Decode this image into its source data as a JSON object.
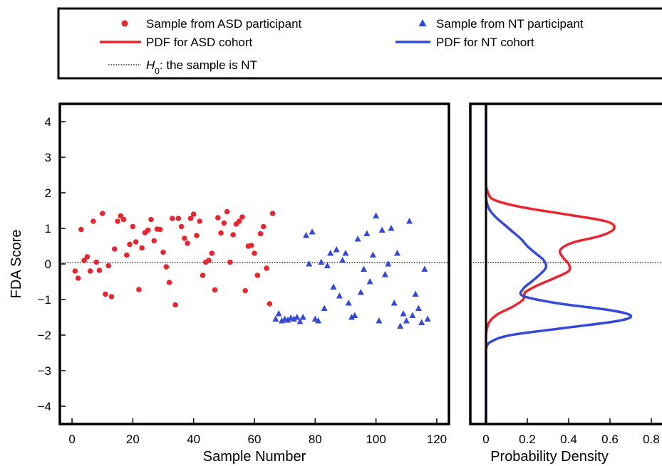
{
  "legend": {
    "placement": "top",
    "items": [
      {
        "label": "Sample from ASD participant",
        "kind": "marker-circle",
        "color": "#e8262f"
      },
      {
        "label": "Sample from NT participant",
        "kind": "marker-triangle",
        "color": "#3449d6"
      },
      {
        "label": "PDF for ASD cohort",
        "kind": "line",
        "color": "#e8262f"
      },
      {
        "label": "PDF for NT cohort",
        "kind": "line",
        "color": "#3449d6"
      },
      {
        "label": "H0: the sample is NT",
        "kind": "dotted-line",
        "color": "#333333"
      }
    ]
  },
  "colors": {
    "asd": "#e8262f",
    "nt": "#3449d6",
    "threshold": "#333333"
  },
  "chart_data": [
    {
      "type": "scatter",
      "xlabel": "Sample Number",
      "ylabel": "FDA Score",
      "xlim": [
        -4,
        124
      ],
      "ylim": [
        -4.5,
        4.5
      ],
      "xticks": [
        0,
        20,
        40,
        60,
        80,
        100,
        120
      ],
      "yticks": [
        4,
        3,
        2,
        1,
        0,
        -1,
        -2,
        -3,
        -4
      ],
      "yticklabels": [
        "4",
        "3",
        "2",
        "1",
        "0",
        "−1",
        "−2",
        "−3",
        "−4"
      ],
      "threshold_y": 0.04,
      "series": [
        {
          "name": "Sample from ASD participant",
          "marker": "circle",
          "points": [
            [
              1,
              -0.2
            ],
            [
              2,
              -0.4
            ],
            [
              3,
              0.97
            ],
            [
              4,
              0.1
            ],
            [
              5,
              0.2
            ],
            [
              6,
              -0.2
            ],
            [
              7,
              1.2
            ],
            [
              8,
              0.05
            ],
            [
              9,
              -0.18
            ],
            [
              10,
              1.42
            ],
            [
              11,
              -0.85
            ],
            [
              12,
              -0.05
            ],
            [
              13,
              -0.92
            ],
            [
              14,
              0.42
            ],
            [
              15,
              1.2
            ],
            [
              16,
              1.35
            ],
            [
              17,
              1.25
            ],
            [
              18,
              0.25
            ],
            [
              19,
              0.55
            ],
            [
              20,
              1.05
            ],
            [
              21,
              0.62
            ],
            [
              22,
              -0.72
            ],
            [
              23,
              0.45
            ],
            [
              24,
              0.88
            ],
            [
              25,
              0.95
            ],
            [
              26,
              1.25
            ],
            [
              27,
              0.65
            ],
            [
              28,
              0.98
            ],
            [
              29,
              0.97
            ],
            [
              30,
              0.33
            ],
            [
              31,
              -0.08
            ],
            [
              32,
              -0.52
            ],
            [
              33,
              1.28
            ],
            [
              34,
              -1.15
            ],
            [
              35,
              1.28
            ],
            [
              36,
              1.05
            ],
            [
              37,
              0.72
            ],
            [
              38,
              0.58
            ],
            [
              39,
              1.28
            ],
            [
              40,
              1.4
            ],
            [
              41,
              0.8
            ],
            [
              42,
              1.2
            ],
            [
              43,
              -0.32
            ],
            [
              44,
              0.05
            ],
            [
              45,
              0.1
            ],
            [
              46,
              0.3
            ],
            [
              47,
              -0.73
            ],
            [
              48,
              1.3
            ],
            [
              49,
              0.87
            ],
            [
              50,
              1.15
            ],
            [
              51,
              1.47
            ],
            [
              52,
              0.05
            ],
            [
              53,
              0.82
            ],
            [
              54,
              1.12
            ],
            [
              55,
              1.2
            ],
            [
              56,
              1.32
            ],
            [
              57,
              -0.75
            ],
            [
              58,
              0.5
            ],
            [
              59,
              0.52
            ],
            [
              60,
              0.3
            ],
            [
              61,
              -0.32
            ],
            [
              62,
              0.85
            ],
            [
              63,
              1.05
            ],
            [
              64,
              -0.12
            ],
            [
              65,
              -1.12
            ],
            [
              66,
              1.42
            ]
          ]
        },
        {
          "name": "Sample from NT participant",
          "marker": "triangle",
          "points": [
            [
              67,
              -1.55
            ],
            [
              68,
              -1.4
            ],
            [
              69,
              -1.6
            ],
            [
              70,
              -1.55
            ],
            [
              71,
              -1.58
            ],
            [
              72,
              -1.52
            ],
            [
              73,
              -1.55
            ],
            [
              74,
              -1.5
            ],
            [
              75,
              -1.62
            ],
            [
              76,
              -1.5
            ],
            [
              77,
              0.8
            ],
            [
              78,
              0.0
            ],
            [
              79,
              0.9
            ],
            [
              80,
              -1.55
            ],
            [
              81,
              -1.6
            ],
            [
              82,
              0.05
            ],
            [
              83,
              -1.25
            ],
            [
              84,
              -0.05
            ],
            [
              85,
              0.3
            ],
            [
              86,
              -0.65
            ],
            [
              87,
              0.4
            ],
            [
              88,
              -0.9
            ],
            [
              89,
              0.1
            ],
            [
              90,
              0.3
            ],
            [
              91,
              -1.1
            ],
            [
              92,
              -1.5
            ],
            [
              93,
              -1.45
            ],
            [
              94,
              0.7
            ],
            [
              95,
              -0.8
            ],
            [
              96,
              -0.15
            ],
            [
              97,
              0.85
            ],
            [
              98,
              -0.5
            ],
            [
              99,
              0.25
            ],
            [
              100,
              1.35
            ],
            [
              101,
              -1.6
            ],
            [
              102,
              0.95
            ],
            [
              103,
              -0.3
            ],
            [
              104,
              0.0
            ],
            [
              105,
              1.0
            ],
            [
              106,
              -1.1
            ],
            [
              107,
              0.3
            ],
            [
              108,
              -1.75
            ],
            [
              109,
              -1.4
            ],
            [
              110,
              -1.6
            ],
            [
              111,
              1.2
            ],
            [
              112,
              -1.45
            ],
            [
              113,
              -0.85
            ],
            [
              114,
              -1.25
            ],
            [
              115,
              -1.65
            ],
            [
              116,
              -0.15
            ],
            [
              117,
              -1.55
            ]
          ]
        }
      ]
    },
    {
      "type": "line",
      "xlabel": "Probability Density",
      "xlim": [
        -0.08,
        0.88
      ],
      "ylim": [
        -4.5,
        4.5
      ],
      "xticks": [
        0,
        0.2,
        0.4,
        0.6,
        0.8
      ],
      "xticklabels": [
        "0",
        "0.2",
        "0.4",
        "0.6",
        "0.8"
      ],
      "threshold_y": 0.04,
      "series": [
        {
          "name": "PDF for ASD cohort",
          "y": [
            -4.5,
            -2.0,
            -1.8,
            -1.6,
            -1.4,
            -1.2,
            -1.0,
            -0.8,
            -0.6,
            -0.4,
            -0.2,
            0.0,
            0.2,
            0.4,
            0.6,
            0.8,
            1.0,
            1.2,
            1.4,
            1.6,
            1.8,
            2.0,
            2.2,
            4.5
          ],
          "density": [
            0,
            0.0,
            0.005,
            0.02,
            0.06,
            0.13,
            0.18,
            0.19,
            0.25,
            0.33,
            0.4,
            0.4,
            0.37,
            0.36,
            0.42,
            0.56,
            0.62,
            0.58,
            0.38,
            0.17,
            0.04,
            0.01,
            0.0,
            0
          ]
        },
        {
          "name": "PDF for NT cohort",
          "y": [
            -4.5,
            -2.4,
            -2.2,
            -2.0,
            -1.8,
            -1.6,
            -1.45,
            -1.3,
            -1.1,
            -0.9,
            -0.7,
            -0.5,
            -0.3,
            -0.1,
            0.1,
            0.3,
            0.5,
            0.7,
            0.9,
            1.1,
            1.3,
            1.5,
            1.7,
            1.9,
            4.5
          ],
          "density": [
            0,
            0.0,
            0.02,
            0.12,
            0.38,
            0.64,
            0.7,
            0.6,
            0.34,
            0.18,
            0.18,
            0.22,
            0.26,
            0.29,
            0.28,
            0.24,
            0.2,
            0.17,
            0.13,
            0.09,
            0.05,
            0.02,
            0.005,
            0.0,
            0
          ]
        }
      ]
    }
  ]
}
